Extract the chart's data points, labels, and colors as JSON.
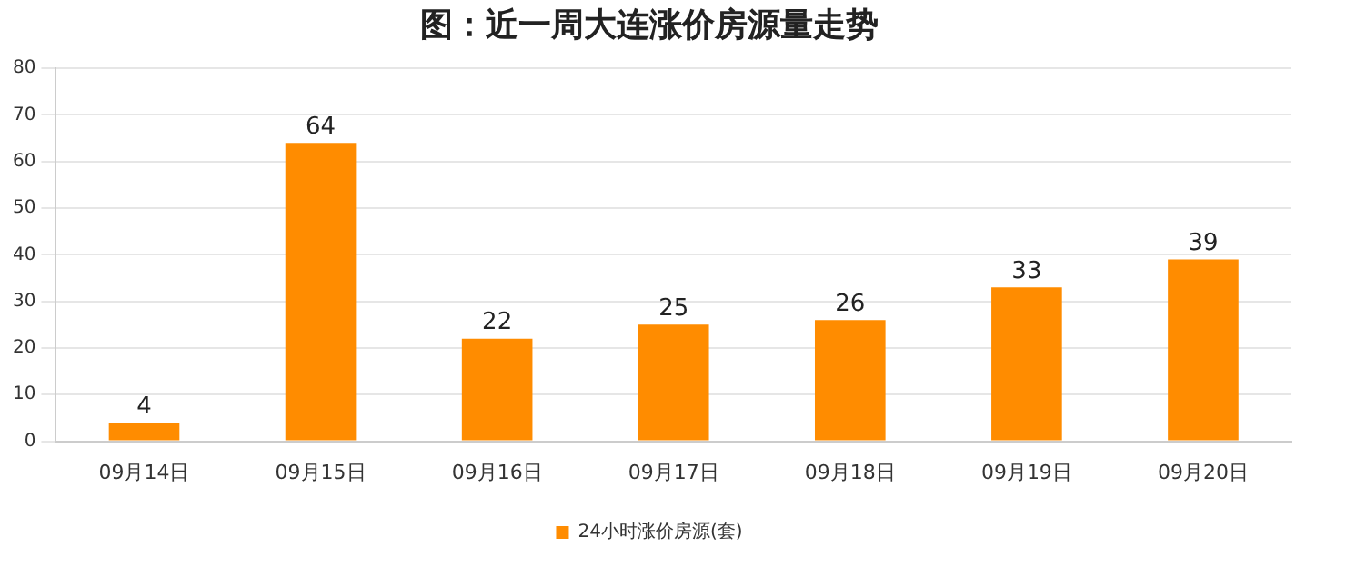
{
  "chart_data": {
    "type": "bar",
    "title": "图：近一周大连涨价房源量走势",
    "categories": [
      "09月14日",
      "09月15日",
      "09月16日",
      "09月17日",
      "09月18日",
      "09月19日",
      "09月20日"
    ],
    "series": [
      {
        "name": "24小时涨价房源(套)",
        "color": "#ff8c00",
        "values": [
          4,
          64,
          22,
          25,
          26,
          33,
          39
        ]
      }
    ],
    "ylim": [
      0,
      80
    ],
    "yticks": [
      0,
      10,
      20,
      30,
      40,
      50,
      60,
      70,
      80
    ],
    "grid": "y",
    "legend": "bottom",
    "data_labels": true
  }
}
